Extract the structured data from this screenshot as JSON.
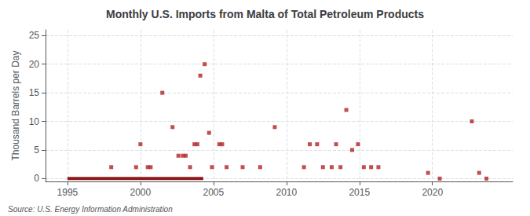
{
  "chart_data": {
    "type": "scatter",
    "title": "Monthly U.S. Imports from Malta of Total Petroleum Products",
    "ylabel": "Thousand Barrels per Day",
    "annotations": [
      "Source: U.S. Energy Information Administration"
    ],
    "xlim": [
      1993.5,
      2025.5
    ],
    "ylim": [
      -0.5,
      26
    ],
    "xticks": [
      1995,
      2000,
      2005,
      2010,
      2015,
      2020
    ],
    "yticks": [
      0,
      5,
      10,
      15,
      20,
      25
    ],
    "grid": true,
    "series": [
      {
        "type": "scatter",
        "color": "#b22222",
        "marker": "square",
        "x": [
          1998.0,
          1999.7,
          2000.0,
          2000.5,
          2000.7,
          2001.5,
          2002.2,
          2002.6,
          2002.9,
          2003.1,
          2003.4,
          2003.7,
          2003.9,
          2004.1,
          2004.4,
          2004.7,
          2004.9,
          2005.4,
          2005.6,
          2005.9,
          2007.0,
          2008.2,
          2009.2,
          2011.2,
          2011.6,
          2012.1,
          2012.5,
          2013.1,
          2013.4,
          2013.7,
          2014.1,
          2014.5,
          2014.9,
          2015.3,
          2015.8,
          2016.3,
          2019.7,
          2020.5,
          2022.7,
          2023.2,
          2023.7
        ],
        "values": [
          2,
          2,
          6,
          2,
          2,
          15,
          9,
          4,
          4,
          4,
          2,
          6,
          6,
          18,
          20,
          8,
          2,
          6,
          6,
          2,
          2,
          2,
          9,
          2,
          6,
          6,
          2,
          2,
          6,
          2,
          12,
          5,
          6,
          2,
          2,
          2,
          1,
          0,
          10,
          1,
          0
        ]
      },
      {
        "type": "line",
        "color": "#8b1a1a",
        "line_style": "solid",
        "x": [
          1995.0,
          2004.3
        ],
        "values": [
          0,
          0
        ]
      }
    ]
  }
}
